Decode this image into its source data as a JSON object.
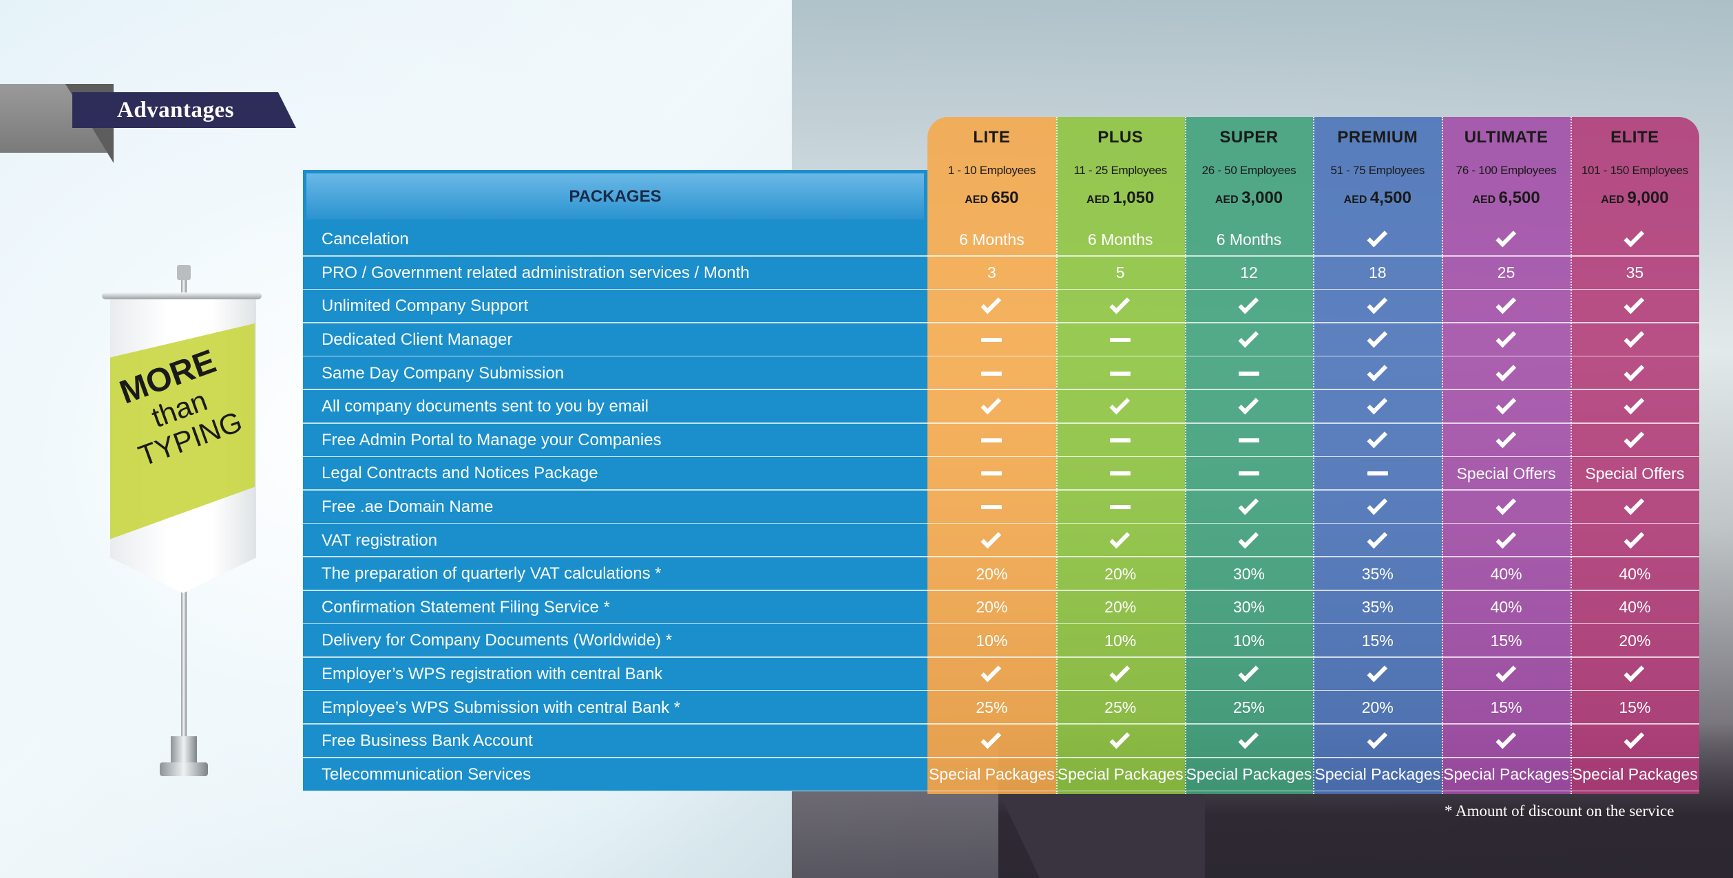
{
  "section_title": "Advantages",
  "banner": {
    "line1": "MORE",
    "line2": "than",
    "line3": "TYPING"
  },
  "packages_header": "PACKAGES",
  "plans": [
    {
      "name": "LITE",
      "employees": "1 - 10 Employees",
      "currency": "AED",
      "price": "650",
      "color": "#f6a84a"
    },
    {
      "name": "PLUS",
      "employees": "11 - 25 Employees",
      "currency": "AED",
      "price": "1,050",
      "color": "#8dc43d"
    },
    {
      "name": "SUPER",
      "employees": "26 - 50 Employees",
      "currency": "AED",
      "price": "3,000",
      "color": "#3fa07a"
    },
    {
      "name": "PREMIUM",
      "employees": "51 - 75 Employees",
      "currency": "AED",
      "price": "4,500",
      "color": "#4a72b8"
    },
    {
      "name": "ULTIMATE",
      "employees": "76 - 100 Employees",
      "currency": "AED",
      "price": "6,500",
      "color": "#a24ba6"
    },
    {
      "name": "ELITE",
      "employees": "101 - 150 Employees",
      "currency": "AED",
      "price": "9,000",
      "color": "#b23a78"
    }
  ],
  "rows": [
    {
      "label": "Cancelation",
      "values": [
        "6 Months",
        "6 Months",
        "6 Months",
        "check",
        "check",
        "check"
      ]
    },
    {
      "label": "PRO / Government related administration services / Month",
      "values": [
        "3",
        "5",
        "12",
        "18",
        "25",
        "35"
      ]
    },
    {
      "label": "Unlimited Company Support",
      "values": [
        "check",
        "check",
        "check",
        "check",
        "check",
        "check"
      ]
    },
    {
      "label": "Dedicated Client Manager",
      "values": [
        "dash",
        "dash",
        "check",
        "check",
        "check",
        "check"
      ]
    },
    {
      "label": "Same Day Company Submission",
      "values": [
        "dash",
        "dash",
        "dash",
        "check",
        "check",
        "check"
      ]
    },
    {
      "label": "All company documents sent to you by email",
      "values": [
        "check",
        "check",
        "check",
        "check",
        "check",
        "check"
      ]
    },
    {
      "label": "Free Admin Portal to Manage your Companies",
      "values": [
        "dash",
        "dash",
        "dash",
        "check",
        "check",
        "check"
      ]
    },
    {
      "label": "Legal Contracts and Notices Package",
      "values": [
        "dash",
        "dash",
        "dash",
        "dash",
        "Special Offers",
        "Special Offers"
      ]
    },
    {
      "label": "Free .ae  Domain Name",
      "values": [
        "dash",
        "dash",
        "check",
        "check",
        "check",
        "check"
      ]
    },
    {
      "label": "VAT registration",
      "values": [
        "check",
        "check",
        "check",
        "check",
        "check",
        "check"
      ]
    },
    {
      "label": "The preparation of quarterly VAT calculations *",
      "values": [
        "20%",
        "20%",
        "30%",
        "35%",
        "40%",
        "40%"
      ]
    },
    {
      "label": "Confirmation Statement Filing Service *",
      "values": [
        "20%",
        "20%",
        "30%",
        "35%",
        "40%",
        "40%"
      ]
    },
    {
      "label": "Delivery for Company Documents (Worldwide) *",
      "values": [
        "10%",
        "10%",
        "10%",
        "15%",
        "15%",
        "20%"
      ]
    },
    {
      "label": "Employer’s WPS  registration with central Bank",
      "values": [
        "check",
        "check",
        "check",
        "check",
        "check",
        "check"
      ]
    },
    {
      "label": "Employee’s WPS  Submission with central Bank *",
      "values": [
        "25%",
        "25%",
        "25%",
        "20%",
        "15%",
        "15%"
      ]
    },
    {
      "label": "Free Business Bank Account",
      "values": [
        "check",
        "check",
        "check",
        "check",
        "check",
        "check"
      ]
    },
    {
      "label": "Telecommunication Services",
      "values": [
        "Special Packages",
        "Special Packages",
        "Special Packages",
        "Special Packages",
        "Special Packages",
        "Special Packages"
      ]
    }
  ],
  "footnote": "* Amount of discount on the service",
  "icons": {
    "check": "checkmark-icon",
    "dash": "dash-icon"
  }
}
